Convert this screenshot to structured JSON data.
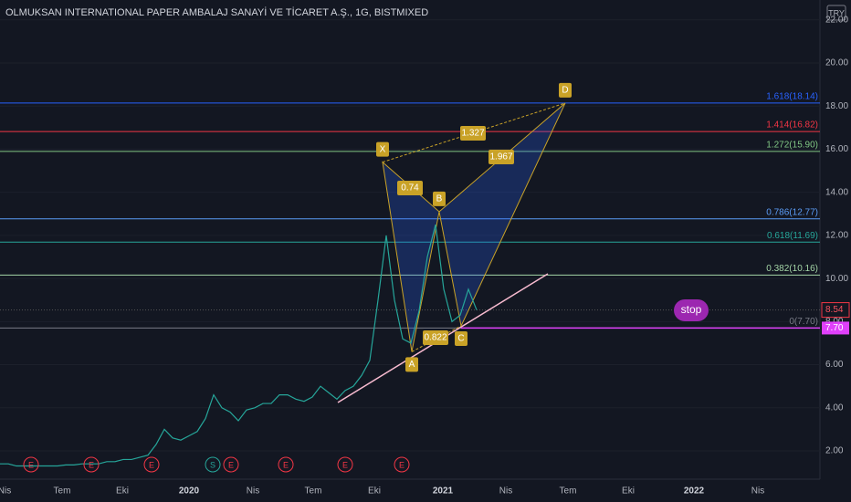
{
  "header": {
    "title": "OLMUKSAN INTERNATIONAL PAPER AMBALAJ SANAYİ VE TİCARET A.Ş., 1G, BISTMIXED",
    "currency": "TRY"
  },
  "price_axis": {
    "ticks": [
      {
        "value": 2,
        "label": "2.00"
      },
      {
        "value": 4,
        "label": "4.00"
      },
      {
        "value": 6,
        "label": "6.00"
      },
      {
        "value": 8,
        "label": "8.00"
      },
      {
        "value": 10,
        "label": "10.00"
      },
      {
        "value": 12,
        "label": "12.00"
      },
      {
        "value": 14,
        "label": "14.00"
      },
      {
        "value": 16,
        "label": "16.00"
      },
      {
        "value": 18,
        "label": "18.00"
      },
      {
        "value": 20,
        "label": "20.00"
      },
      {
        "value": 22,
        "label": "22.00"
      }
    ],
    "last_price": {
      "value": 8.54,
      "label": "8.54"
    },
    "stop_price": {
      "value": 7.7,
      "label": "7.70"
    }
  },
  "time_axis": [
    "Nis",
    "Tem",
    "Eki",
    "2020",
    "Nis",
    "Tem",
    "Eki",
    "2021",
    "Nis",
    "Tem",
    "Eki",
    "2022",
    "Nis"
  ],
  "price_path": [
    1.4,
    1.4,
    1.3,
    1.3,
    1.3,
    1.3,
    1.3,
    1.3,
    1.35,
    1.35,
    1.4,
    1.4,
    1.4,
    1.5,
    1.5,
    1.6,
    1.6,
    1.7,
    1.8,
    2.3,
    3.0,
    2.6,
    2.5,
    2.7,
    2.9,
    3.5,
    4.6,
    4.0,
    3.8,
    3.4,
    3.9,
    4.0,
    4.2,
    4.2,
    4.6,
    4.6,
    4.4,
    4.3,
    4.5,
    5.0,
    4.7,
    4.4,
    4.8,
    5.0,
    5.5,
    6.2,
    9.0,
    12.0,
    9.0,
    7.2,
    7.0,
    8.5,
    11.0,
    12.5,
    9.5,
    8.0,
    8.3,
    9.5,
    8.54
  ],
  "fib_levels": [
    {
      "value": 18.14,
      "label": "1.618(18.14)",
      "color": "#2962ff"
    },
    {
      "value": 16.82,
      "label": "1.414(16.82)",
      "color": "#f23645"
    },
    {
      "value": 15.9,
      "label": "1.272(15.90)",
      "color": "#81c784"
    },
    {
      "value": 12.77,
      "label": "0.786(12.77)",
      "color": "#5b9cf6"
    },
    {
      "value": 11.69,
      "label": "0.618(11.69)",
      "color": "#26a69a"
    },
    {
      "value": 10.16,
      "label": "0.382(10.16)",
      "color": "#a5d6a7"
    },
    {
      "value": 7.7,
      "label": "0(7.70)",
      "color": "#787b86"
    }
  ],
  "pattern_points": [
    {
      "label": "X",
      "value": 15.4
    },
    {
      "label": "A",
      "value": 6.6
    },
    {
      "label": "B",
      "value": 13.1
    },
    {
      "label": "C",
      "value": 7.8
    },
    {
      "label": "D",
      "value": 18.14
    }
  ],
  "ratios": [
    "0.74",
    "0.822",
    "1.327",
    "1.967"
  ],
  "events": [
    "E",
    "E",
    "E",
    "S",
    "E",
    "E",
    "E",
    "E"
  ],
  "annotation": "stop"
}
